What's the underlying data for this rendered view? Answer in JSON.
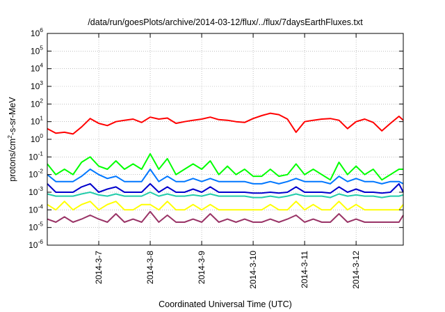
{
  "chart_data": {
    "type": "line",
    "title": "/data/run/goesPlots/archive/2014-03-12/flux/../flux/7daysEarthFluxes.txt",
    "xlabel": "Coordinated Universal Time (UTC)",
    "ylabel_parts": [
      "protons/cm",
      "2",
      "-s-sr-MeV"
    ],
    "y_scale": "log",
    "ylim": [
      1e-06,
      1000000.0
    ],
    "y_ticks": [
      {
        "value": 1e-06,
        "base": "10",
        "exp": "-6"
      },
      {
        "value": 1e-05,
        "base": "10",
        "exp": "-5"
      },
      {
        "value": 0.0001,
        "base": "10",
        "exp": "-4"
      },
      {
        "value": 0.001,
        "base": "10",
        "exp": "-3"
      },
      {
        "value": 0.01,
        "base": "10",
        "exp": "-2"
      },
      {
        "value": 0.1,
        "base": "10",
        "exp": "-1"
      },
      {
        "value": 1,
        "base": "10",
        "exp": "0"
      },
      {
        "value": 10,
        "base": "10",
        "exp": "1"
      },
      {
        "value": 100,
        "base": "10",
        "exp": "2"
      },
      {
        "value": 1000,
        "base": "10",
        "exp": "3"
      },
      {
        "value": 10000,
        "base": "10",
        "exp": "4"
      },
      {
        "value": 100000,
        "base": "10",
        "exp": "5"
      },
      {
        "value": 1000000,
        "base": "10",
        "exp": "6"
      }
    ],
    "x_range": [
      "2014-03-06 00:00",
      "2014-03-12 22:00"
    ],
    "x_ticks": [
      "2014-3-7",
      "2014-3-8",
      "2014-3-9",
      "2014-3-10",
      "2014-3-11",
      "2014-3-12"
    ],
    "x_tick_dates": [
      "2014-03-07",
      "2014-03-08",
      "2014-03-09",
      "2014-03-10",
      "2014-03-11",
      "2014-03-12"
    ],
    "grid": true,
    "legend": "none",
    "series": [
      {
        "color": "#ff0000",
        "x": [
          "2014-03-06 00:00",
          "2014-03-06 04:00",
          "2014-03-06 08:00",
          "2014-03-06 12:00",
          "2014-03-06 16:00",
          "2014-03-06 20:00",
          "2014-03-07 00:00",
          "2014-03-07 04:00",
          "2014-03-07 08:00",
          "2014-03-07 12:00",
          "2014-03-07 16:00",
          "2014-03-07 20:00",
          "2014-03-08 00:00",
          "2014-03-08 04:00",
          "2014-03-08 08:00",
          "2014-03-08 12:00",
          "2014-03-08 16:00",
          "2014-03-08 20:00",
          "2014-03-09 00:00",
          "2014-03-09 04:00",
          "2014-03-09 08:00",
          "2014-03-09 12:00",
          "2014-03-09 16:00",
          "2014-03-09 20:00",
          "2014-03-10 00:00",
          "2014-03-10 04:00",
          "2014-03-10 08:00",
          "2014-03-10 12:00",
          "2014-03-10 16:00",
          "2014-03-10 20:00",
          "2014-03-11 00:00",
          "2014-03-11 04:00",
          "2014-03-11 08:00",
          "2014-03-11 12:00",
          "2014-03-11 16:00",
          "2014-03-11 20:00",
          "2014-03-12 00:00",
          "2014-03-12 04:00",
          "2014-03-12 08:00",
          "2014-03-12 12:00",
          "2014-03-12 16:00",
          "2014-03-12 20:00",
          "2014-03-12 22:00"
        ],
        "y": [
          4,
          2.2,
          2.5,
          2,
          5,
          15,
          8,
          6,
          10,
          12,
          14,
          9,
          18,
          14,
          16,
          8,
          10,
          12,
          14,
          18,
          13,
          12,
          10,
          9,
          15,
          22,
          30,
          25,
          14,
          2.5,
          10,
          12,
          14,
          15,
          12,
          4,
          10,
          14,
          9,
          3,
          8,
          20,
          12
        ]
      },
      {
        "color": "#00ff00",
        "x": [
          "2014-03-06 00:00",
          "2014-03-06 04:00",
          "2014-03-06 08:00",
          "2014-03-06 12:00",
          "2014-03-06 16:00",
          "2014-03-06 20:00",
          "2014-03-07 00:00",
          "2014-03-07 04:00",
          "2014-03-07 08:00",
          "2014-03-07 12:00",
          "2014-03-07 16:00",
          "2014-03-07 20:00",
          "2014-03-08 00:00",
          "2014-03-08 04:00",
          "2014-03-08 08:00",
          "2014-03-08 12:00",
          "2014-03-08 16:00",
          "2014-03-08 20:00",
          "2014-03-09 00:00",
          "2014-03-09 04:00",
          "2014-03-09 08:00",
          "2014-03-09 12:00",
          "2014-03-09 16:00",
          "2014-03-09 20:00",
          "2014-03-10 00:00",
          "2014-03-10 04:00",
          "2014-03-10 08:00",
          "2014-03-10 12:00",
          "2014-03-10 16:00",
          "2014-03-10 20:00",
          "2014-03-11 00:00",
          "2014-03-11 04:00",
          "2014-03-11 08:00",
          "2014-03-11 12:00",
          "2014-03-11 16:00",
          "2014-03-11 20:00",
          "2014-03-12 00:00",
          "2014-03-12 04:00",
          "2014-03-12 08:00",
          "2014-03-12 12:00",
          "2014-03-12 16:00",
          "2014-03-12 20:00",
          "2014-03-12 22:00"
        ],
        "y": [
          0.04,
          0.01,
          0.02,
          0.01,
          0.05,
          0.1,
          0.03,
          0.02,
          0.06,
          0.02,
          0.04,
          0.02,
          0.15,
          0.02,
          0.08,
          0.01,
          0.02,
          0.04,
          0.02,
          0.06,
          0.01,
          0.03,
          0.01,
          0.02,
          0.008,
          0.008,
          0.02,
          0.008,
          0.01,
          0.04,
          0.01,
          0.02,
          0.01,
          0.005,
          0.05,
          0.01,
          0.03,
          0.01,
          0.02,
          0.005,
          0.01,
          0.02,
          0.02
        ]
      },
      {
        "color": "#0077ff",
        "x": [
          "2014-03-06 00:00",
          "2014-03-06 04:00",
          "2014-03-06 08:00",
          "2014-03-06 12:00",
          "2014-03-06 16:00",
          "2014-03-06 20:00",
          "2014-03-07 00:00",
          "2014-03-07 04:00",
          "2014-03-07 08:00",
          "2014-03-07 12:00",
          "2014-03-07 16:00",
          "2014-03-07 20:00",
          "2014-03-08 00:00",
          "2014-03-08 04:00",
          "2014-03-08 08:00",
          "2014-03-08 12:00",
          "2014-03-08 16:00",
          "2014-03-08 20:00",
          "2014-03-09 00:00",
          "2014-03-09 04:00",
          "2014-03-09 08:00",
          "2014-03-09 12:00",
          "2014-03-09 16:00",
          "2014-03-09 20:00",
          "2014-03-10 00:00",
          "2014-03-10 04:00",
          "2014-03-10 08:00",
          "2014-03-10 12:00",
          "2014-03-10 16:00",
          "2014-03-10 20:00",
          "2014-03-11 00:00",
          "2014-03-11 04:00",
          "2014-03-11 08:00",
          "2014-03-11 12:00",
          "2014-03-11 16:00",
          "2014-03-11 20:00",
          "2014-03-12 00:00",
          "2014-03-12 04:00",
          "2014-03-12 08:00",
          "2014-03-12 12:00",
          "2014-03-12 16:00",
          "2014-03-12 20:00",
          "2014-03-12 22:00"
        ],
        "y": [
          0.01,
          0.004,
          0.004,
          0.004,
          0.008,
          0.02,
          0.01,
          0.006,
          0.008,
          0.004,
          0.004,
          0.004,
          0.02,
          0.004,
          0.008,
          0.004,
          0.004,
          0.006,
          0.004,
          0.006,
          0.004,
          0.004,
          0.004,
          0.004,
          0.003,
          0.003,
          0.004,
          0.003,
          0.004,
          0.006,
          0.004,
          0.004,
          0.004,
          0.003,
          0.008,
          0.004,
          0.006,
          0.004,
          0.004,
          0.003,
          0.004,
          0.004,
          0.003
        ]
      },
      {
        "color": "#0000cc",
        "x": [
          "2014-03-06 00:00",
          "2014-03-06 04:00",
          "2014-03-06 08:00",
          "2014-03-06 12:00",
          "2014-03-06 16:00",
          "2014-03-06 20:00",
          "2014-03-07 00:00",
          "2014-03-07 04:00",
          "2014-03-07 08:00",
          "2014-03-07 12:00",
          "2014-03-07 16:00",
          "2014-03-07 20:00",
          "2014-03-08 00:00",
          "2014-03-08 04:00",
          "2014-03-08 08:00",
          "2014-03-08 12:00",
          "2014-03-08 16:00",
          "2014-03-08 20:00",
          "2014-03-09 00:00",
          "2014-03-09 04:00",
          "2014-03-09 08:00",
          "2014-03-09 12:00",
          "2014-03-09 16:00",
          "2014-03-09 20:00",
          "2014-03-10 00:00",
          "2014-03-10 04:00",
          "2014-03-10 08:00",
          "2014-03-10 12:00",
          "2014-03-10 16:00",
          "2014-03-10 20:00",
          "2014-03-11 00:00",
          "2014-03-11 04:00",
          "2014-03-11 08:00",
          "2014-03-11 12:00",
          "2014-03-11 16:00",
          "2014-03-11 20:00",
          "2014-03-12 00:00",
          "2014-03-12 04:00",
          "2014-03-12 08:00",
          "2014-03-12 12:00",
          "2014-03-12 16:00",
          "2014-03-12 20:00",
          "2014-03-12 22:00"
        ],
        "y": [
          0.003,
          0.001,
          0.001,
          0.001,
          0.002,
          0.003,
          0.001,
          0.0015,
          0.002,
          0.001,
          0.001,
          0.001,
          0.003,
          0.001,
          0.002,
          0.001,
          0.001,
          0.0015,
          0.001,
          0.002,
          0.001,
          0.001,
          0.001,
          0.001,
          0.0009,
          0.0009,
          0.001,
          0.0009,
          0.001,
          0.002,
          0.001,
          0.001,
          0.001,
          0.0009,
          0.002,
          0.001,
          0.0015,
          0.001,
          0.001,
          0.0009,
          0.001,
          0.003,
          0.001
        ]
      },
      {
        "color": "#22ccaa",
        "x": [
          "2014-03-06 00:00",
          "2014-03-06 04:00",
          "2014-03-06 08:00",
          "2014-03-06 12:00",
          "2014-03-06 16:00",
          "2014-03-06 20:00",
          "2014-03-07 00:00",
          "2014-03-07 04:00",
          "2014-03-07 08:00",
          "2014-03-07 12:00",
          "2014-03-07 16:00",
          "2014-03-07 20:00",
          "2014-03-08 00:00",
          "2014-03-08 04:00",
          "2014-03-08 08:00",
          "2014-03-08 12:00",
          "2014-03-08 16:00",
          "2014-03-08 20:00",
          "2014-03-09 00:00",
          "2014-03-09 04:00",
          "2014-03-09 08:00",
          "2014-03-09 12:00",
          "2014-03-09 16:00",
          "2014-03-09 20:00",
          "2014-03-10 00:00",
          "2014-03-10 04:00",
          "2014-03-10 08:00",
          "2014-03-10 12:00",
          "2014-03-10 16:00",
          "2014-03-10 20:00",
          "2014-03-11 00:00",
          "2014-03-11 04:00",
          "2014-03-11 08:00",
          "2014-03-11 12:00",
          "2014-03-11 16:00",
          "2014-03-11 20:00",
          "2014-03-12 00:00",
          "2014-03-12 04:00",
          "2014-03-12 08:00",
          "2014-03-12 12:00",
          "2014-03-12 16:00",
          "2014-03-12 20:00",
          "2014-03-12 22:00"
        ],
        "y": [
          0.0008,
          0.0006,
          0.0006,
          0.0006,
          0.0008,
          0.001,
          0.0007,
          0.0006,
          0.0008,
          0.0006,
          0.0006,
          0.0006,
          0.001,
          0.0006,
          0.0008,
          0.0006,
          0.0006,
          0.0007,
          0.0006,
          0.0008,
          0.0006,
          0.0006,
          0.0006,
          0.0006,
          0.0005,
          0.0005,
          0.0006,
          0.0005,
          0.0006,
          0.0008,
          0.0006,
          0.0006,
          0.0006,
          0.0005,
          0.0008,
          0.0006,
          0.0007,
          0.0006,
          0.0006,
          0.0005,
          0.0006,
          0.0006,
          0.0007
        ]
      },
      {
        "color": "#ffff00",
        "x": [
          "2014-03-06 00:00",
          "2014-03-06 04:00",
          "2014-03-06 08:00",
          "2014-03-06 12:00",
          "2014-03-06 16:00",
          "2014-03-06 20:00",
          "2014-03-07 00:00",
          "2014-03-07 04:00",
          "2014-03-07 08:00",
          "2014-03-07 12:00",
          "2014-03-07 16:00",
          "2014-03-07 20:00",
          "2014-03-08 00:00",
          "2014-03-08 04:00",
          "2014-03-08 08:00",
          "2014-03-08 12:00",
          "2014-03-08 16:00",
          "2014-03-08 20:00",
          "2014-03-09 00:00",
          "2014-03-09 04:00",
          "2014-03-09 08:00",
          "2014-03-09 12:00",
          "2014-03-09 16:00",
          "2014-03-09 20:00",
          "2014-03-10 00:00",
          "2014-03-10 04:00",
          "2014-03-10 08:00",
          "2014-03-10 12:00",
          "2014-03-10 16:00",
          "2014-03-10 20:00",
          "2014-03-11 00:00",
          "2014-03-11 04:00",
          "2014-03-11 08:00",
          "2014-03-11 12:00",
          "2014-03-11 16:00",
          "2014-03-11 20:00",
          "2014-03-12 00:00",
          "2014-03-12 04:00",
          "2014-03-12 08:00",
          "2014-03-12 12:00",
          "2014-03-12 16:00",
          "2014-03-12 20:00",
          "2014-03-12 22:00"
        ],
        "y": [
          0.0002,
          0.0001,
          0.0003,
          0.0001,
          0.0002,
          0.0003,
          0.0001,
          0.0002,
          0.0003,
          0.0001,
          0.0001,
          0.0002,
          0.0002,
          0.0001,
          0.0003,
          0.0001,
          0.0001,
          0.0002,
          0.0001,
          0.0002,
          0.0001,
          0.0001,
          0.0001,
          0.0001,
          0.0001,
          0.0001,
          0.0002,
          0.0001,
          0.0001,
          0.0003,
          0.0001,
          0.0002,
          0.0001,
          0.0001,
          0.0003,
          0.0001,
          0.0002,
          0.0001,
          0.0001,
          0.0001,
          0.0001,
          0.0001,
          0.0002
        ]
      },
      {
        "color": "#993366",
        "x": [
          "2014-03-06 00:00",
          "2014-03-06 04:00",
          "2014-03-06 08:00",
          "2014-03-06 12:00",
          "2014-03-06 16:00",
          "2014-03-06 20:00",
          "2014-03-07 00:00",
          "2014-03-07 04:00",
          "2014-03-07 08:00",
          "2014-03-07 12:00",
          "2014-03-07 16:00",
          "2014-03-07 20:00",
          "2014-03-08 00:00",
          "2014-03-08 04:00",
          "2014-03-08 08:00",
          "2014-03-08 12:00",
          "2014-03-08 16:00",
          "2014-03-08 20:00",
          "2014-03-09 00:00",
          "2014-03-09 04:00",
          "2014-03-09 08:00",
          "2014-03-09 12:00",
          "2014-03-09 16:00",
          "2014-03-09 20:00",
          "2014-03-10 00:00",
          "2014-03-10 04:00",
          "2014-03-10 08:00",
          "2014-03-10 12:00",
          "2014-03-10 16:00",
          "2014-03-10 20:00",
          "2014-03-11 00:00",
          "2014-03-11 04:00",
          "2014-03-11 08:00",
          "2014-03-11 12:00",
          "2014-03-11 16:00",
          "2014-03-11 20:00",
          "2014-03-12 00:00",
          "2014-03-12 04:00",
          "2014-03-12 08:00",
          "2014-03-12 12:00",
          "2014-03-12 16:00",
          "2014-03-12 20:00",
          "2014-03-12 22:00"
        ],
        "y": [
          3e-05,
          2e-05,
          4e-05,
          2e-05,
          3e-05,
          5e-05,
          3e-05,
          2e-05,
          6e-05,
          2e-05,
          3e-05,
          2e-05,
          8e-05,
          2e-05,
          5e-05,
          2e-05,
          2e-05,
          3e-05,
          2e-05,
          6e-05,
          2e-05,
          3e-05,
          2e-05,
          3e-05,
          2e-05,
          2e-05,
          3e-05,
          2e-05,
          3e-05,
          5e-05,
          2e-05,
          3e-05,
          2e-05,
          2e-05,
          6e-05,
          2e-05,
          3e-05,
          2e-05,
          2e-05,
          2e-05,
          2e-05,
          2e-05,
          5e-05
        ]
      }
    ]
  }
}
